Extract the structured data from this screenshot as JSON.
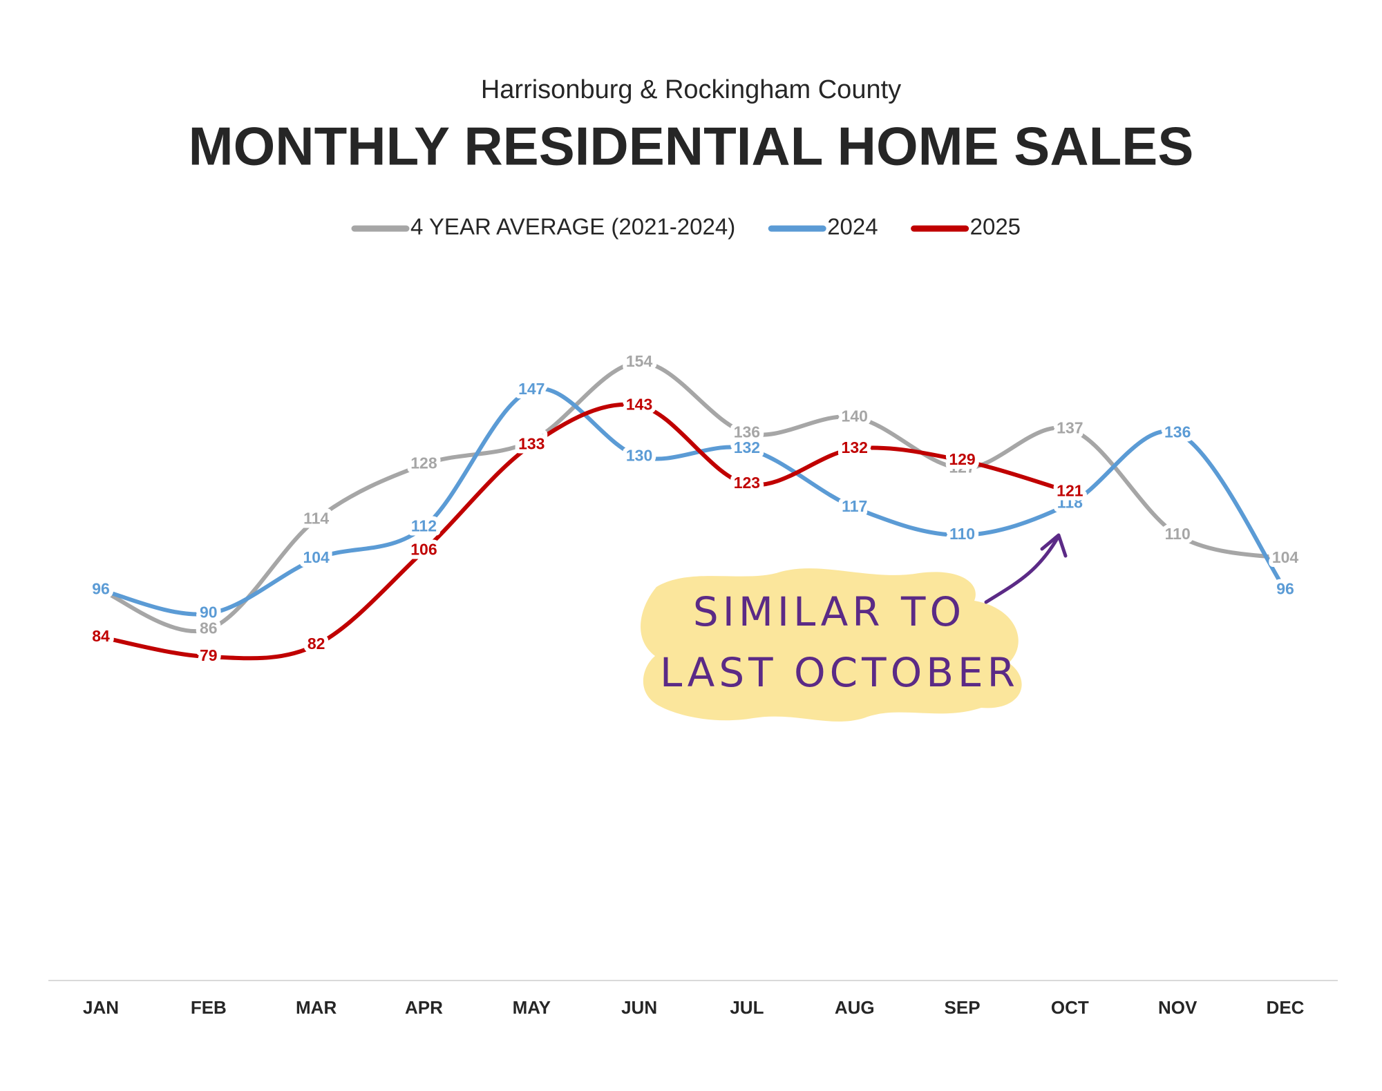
{
  "chart_data": {
    "type": "line",
    "subtitle": "Harrisonburg & Rockingham County",
    "title": "MONTHLY RESIDENTIAL HOME SALES",
    "categories": [
      "JAN",
      "FEB",
      "MAR",
      "APR",
      "MAY",
      "JUN",
      "JUL",
      "AUG",
      "SEP",
      "OCT",
      "NOV",
      "DEC"
    ],
    "series": [
      {
        "name": "4 YEAR AVERAGE (2021-2024)",
        "color": "#a6a6a6",
        "values": [
          96,
          86,
          114,
          128,
          134,
          154,
          136,
          140,
          127,
          137,
          110,
          104
        ]
      },
      {
        "name": "2024",
        "color": "#5b9bd5",
        "values": [
          96,
          90,
          104,
          112,
          147,
          130,
          132,
          117,
          110,
          118,
          136,
          96
        ]
      },
      {
        "name": "2025",
        "color": "#c00000",
        "values": [
          84,
          79,
          82,
          106,
          133,
          143,
          123,
          132,
          129,
          121,
          null,
          null
        ]
      }
    ],
    "ylim": [
      0,
      170
    ],
    "legend": "top",
    "annotation": [
      "SIMILAR TO",
      "LAST OCTOBER"
    ]
  }
}
